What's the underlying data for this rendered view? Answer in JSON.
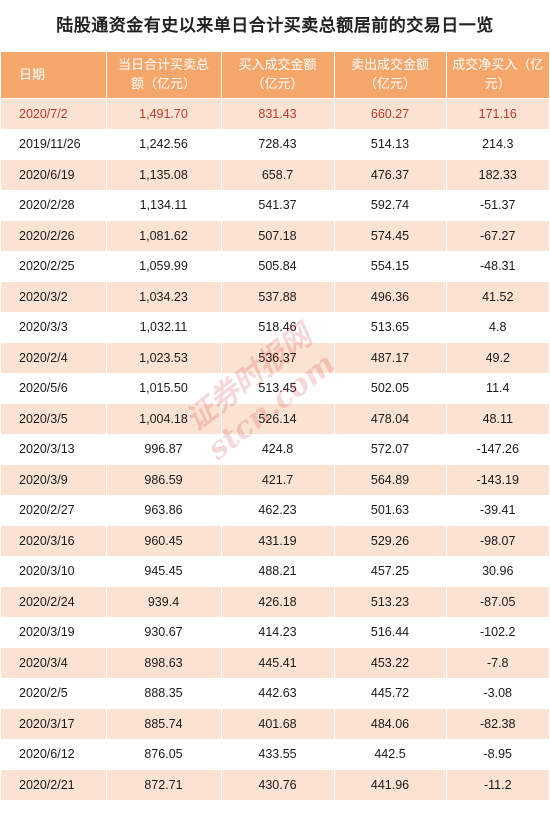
{
  "title": "陆股通资金有史以来单日合计买卖总额居前的交易日一览",
  "headers": {
    "date": "日期",
    "total_line1": "当日合计买卖总",
    "total_line2": "额（亿元）",
    "buy_line1": "买入成交金额",
    "buy_line2": "（亿元）",
    "sell_line1": "卖出成交金额",
    "sell_line2": "（亿元）",
    "net_line1": "成交净买入（亿",
    "net_line2": "元）"
  },
  "rows": [
    {
      "date": "2020/7/2",
      "total": "1,491.70",
      "buy": "831.43",
      "sell": "660.27",
      "net": "171.16"
    },
    {
      "date": "2019/11/26",
      "total": "1,242.56",
      "buy": "728.43",
      "sell": "514.13",
      "net": "214.3"
    },
    {
      "date": "2020/6/19",
      "total": "1,135.08",
      "buy": "658.7",
      "sell": "476.37",
      "net": "182.33"
    },
    {
      "date": "2020/2/28",
      "total": "1,134.11",
      "buy": "541.37",
      "sell": "592.74",
      "net": "-51.37"
    },
    {
      "date": "2020/2/26",
      "total": "1,081.62",
      "buy": "507.18",
      "sell": "574.45",
      "net": "-67.27"
    },
    {
      "date": "2020/2/25",
      "total": "1,059.99",
      "buy": "505.84",
      "sell": "554.15",
      "net": "-48.31"
    },
    {
      "date": "2020/3/2",
      "total": "1,034.23",
      "buy": "537.88",
      "sell": "496.36",
      "net": "41.52"
    },
    {
      "date": "2020/3/3",
      "total": "1,032.11",
      "buy": "518.46",
      "sell": "513.65",
      "net": "4.8"
    },
    {
      "date": "2020/2/4",
      "total": "1,023.53",
      "buy": "536.37",
      "sell": "487.17",
      "net": "49.2"
    },
    {
      "date": "2020/5/6",
      "total": "1,015.50",
      "buy": "513.45",
      "sell": "502.05",
      "net": "11.4"
    },
    {
      "date": "2020/3/5",
      "total": "1,004.18",
      "buy": "526.14",
      "sell": "478.04",
      "net": "48.11"
    },
    {
      "date": "2020/3/13",
      "total": "996.87",
      "buy": "424.8",
      "sell": "572.07",
      "net": "-147.26"
    },
    {
      "date": "2020/3/9",
      "total": "986.59",
      "buy": "421.7",
      "sell": "564.89",
      "net": "-143.19"
    },
    {
      "date": "2020/2/27",
      "total": "963.86",
      "buy": "462.23",
      "sell": "501.63",
      "net": "-39.41"
    },
    {
      "date": "2020/3/16",
      "total": "960.45",
      "buy": "431.19",
      "sell": "529.26",
      "net": "-98.07"
    },
    {
      "date": "2020/3/10",
      "total": "945.45",
      "buy": "488.21",
      "sell": "457.25",
      "net": "30.96"
    },
    {
      "date": "2020/2/24",
      "total": "939.4",
      "buy": "426.18",
      "sell": "513.23",
      "net": "-87.05"
    },
    {
      "date": "2020/3/19",
      "total": "930.67",
      "buy": "414.23",
      "sell": "516.44",
      "net": "-102.2"
    },
    {
      "date": "2020/3/4",
      "total": "898.63",
      "buy": "445.41",
      "sell": "453.22",
      "net": "-7.8"
    },
    {
      "date": "2020/2/5",
      "total": "888.35",
      "buy": "442.63",
      "sell": "445.72",
      "net": "-3.08"
    },
    {
      "date": "2020/3/17",
      "total": "885.74",
      "buy": "401.68",
      "sell": "484.06",
      "net": "-82.38"
    },
    {
      "date": "2020/6/12",
      "total": "876.05",
      "buy": "433.55",
      "sell": "442.5",
      "net": "-8.95"
    },
    {
      "date": "2020/2/21",
      "total": "872.71",
      "buy": "430.76",
      "sell": "441.96",
      "net": "-11.2"
    }
  ],
  "watermark": "证券时报网 stcn.com"
}
